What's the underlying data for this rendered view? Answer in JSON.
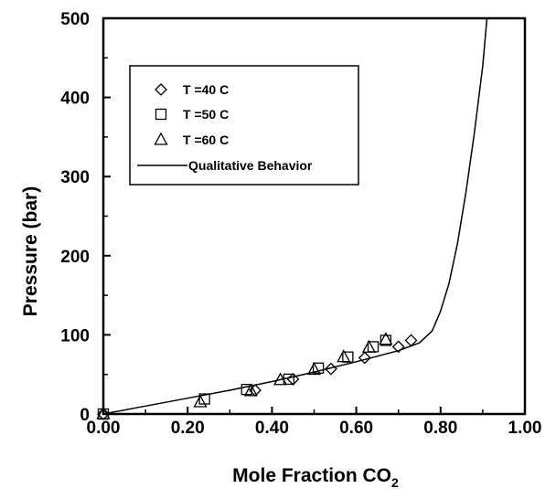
{
  "chart_data": {
    "type": "scatter",
    "title": "",
    "xlabel": "Mole Fraction CO",
    "xlabel_subscript": "2",
    "ylabel": "Pressure  (bar)",
    "xlim": [
      0,
      1
    ],
    "ylim": [
      0,
      500
    ],
    "x_ticks": [
      "0.00",
      "0.20",
      "0.40",
      "0.60",
      "0.80",
      "1.00"
    ],
    "y_ticks": [
      "0",
      "100",
      "200",
      "300",
      "400",
      "500"
    ],
    "x_tick_values": [
      0,
      0.2,
      0.4,
      0.6,
      0.8,
      1.0
    ],
    "y_tick_values": [
      0,
      100,
      200,
      300,
      400,
      500
    ],
    "grid": false,
    "legend_position": "top-left",
    "series": [
      {
        "name": "T =40 C",
        "marker": "diamond",
        "points": [
          [
            0.0,
            0
          ],
          [
            0.36,
            30
          ],
          [
            0.45,
            44
          ],
          [
            0.54,
            57
          ],
          [
            0.62,
            71
          ],
          [
            0.7,
            85
          ],
          [
            0.73,
            93
          ]
        ]
      },
      {
        "name": "T =50 C",
        "marker": "square",
        "points": [
          [
            0.0,
            0
          ],
          [
            0.24,
            19
          ],
          [
            0.34,
            31
          ],
          [
            0.44,
            44
          ],
          [
            0.51,
            58
          ],
          [
            0.58,
            72
          ],
          [
            0.64,
            85
          ],
          [
            0.67,
            93
          ]
        ]
      },
      {
        "name": "T =60 C",
        "marker": "triangle",
        "points": [
          [
            0.0,
            0
          ],
          [
            0.23,
            15
          ],
          [
            0.35,
            29
          ],
          [
            0.42,
            43
          ],
          [
            0.5,
            56
          ],
          [
            0.57,
            72
          ],
          [
            0.63,
            84
          ],
          [
            0.67,
            94
          ]
        ]
      },
      {
        "name": "Qualitative Behavior",
        "marker": "line",
        "points": [
          [
            0.0,
            0
          ],
          [
            0.1,
            10
          ],
          [
            0.2,
            20
          ],
          [
            0.3,
            30
          ],
          [
            0.4,
            41
          ],
          [
            0.5,
            53
          ],
          [
            0.6,
            66
          ],
          [
            0.7,
            80
          ],
          [
            0.75,
            90
          ],
          [
            0.78,
            105
          ],
          [
            0.8,
            130
          ],
          [
            0.82,
            165
          ],
          [
            0.84,
            215
          ],
          [
            0.86,
            280
          ],
          [
            0.88,
            355
          ],
          [
            0.9,
            440
          ],
          [
            0.91,
            500
          ]
        ]
      }
    ]
  }
}
